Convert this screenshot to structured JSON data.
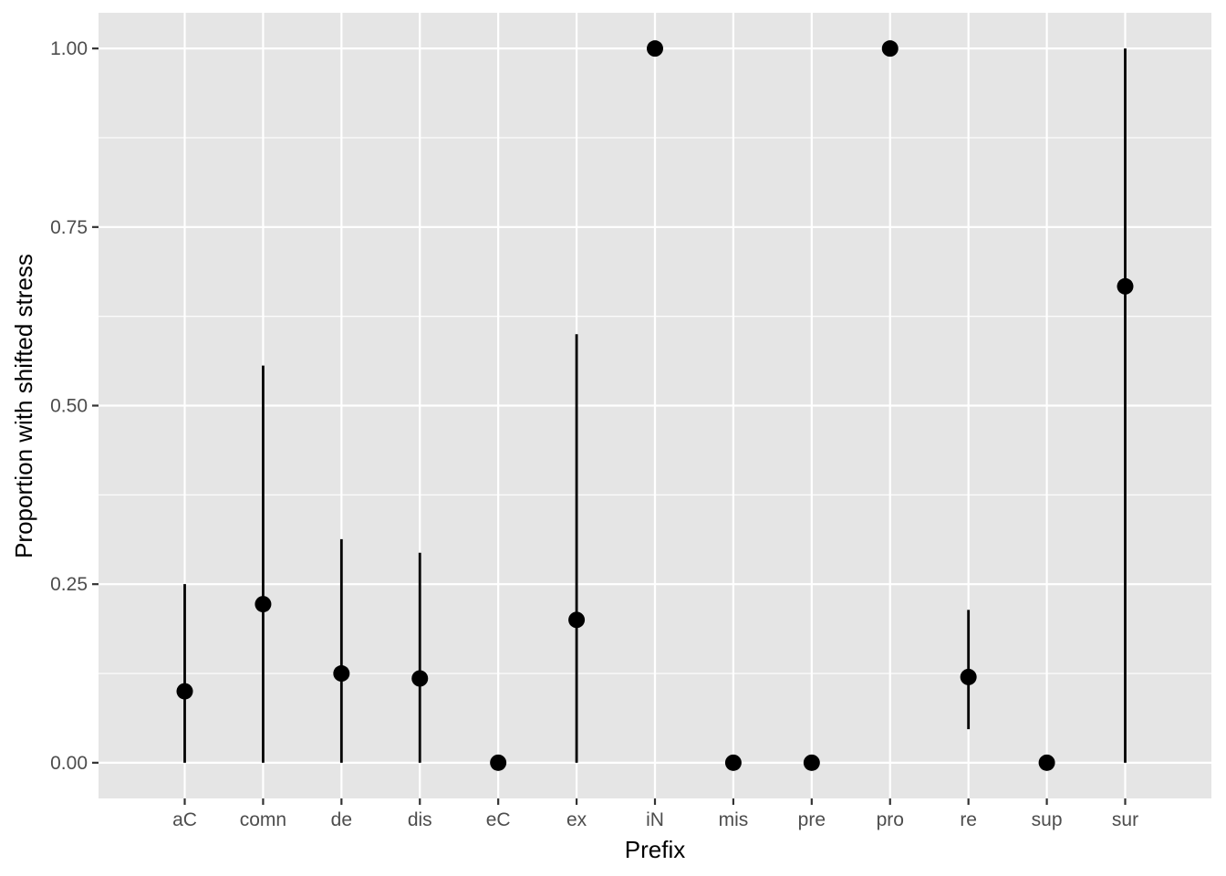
{
  "chart_data": {
    "type": "scatter",
    "xlabel": "Prefix",
    "ylabel": "Proportion with shifted stress",
    "categories": [
      "aC",
      "comn",
      "de",
      "dis",
      "eC",
      "ex",
      "iN",
      "mis",
      "pre",
      "pro",
      "re",
      "sup",
      "sur"
    ],
    "values": [
      0.1,
      0.222,
      0.125,
      0.118,
      0.0,
      0.2,
      1.0,
      0.0,
      0.0,
      1.0,
      0.12,
      0.0,
      0.667
    ],
    "error_low": [
      0.0,
      0.0,
      0.0,
      0.0,
      0.0,
      0.0,
      1.0,
      0.0,
      0.0,
      1.0,
      0.047,
      0.0,
      0.0
    ],
    "error_high": [
      0.25,
      0.556,
      0.313,
      0.294,
      0.0,
      0.6,
      1.0,
      0.0,
      0.0,
      1.0,
      0.214,
      0.0,
      1.0
    ],
    "y_ticks": [
      0.0,
      0.25,
      0.5,
      0.75,
      1.0
    ],
    "y_tick_labels": [
      "0.00",
      "0.25",
      "0.50",
      "0.75",
      "1.00"
    ],
    "ylim": [
      -0.05,
      1.05
    ],
    "grid": true,
    "legend": "none",
    "colors": {
      "panel": "#e5e5e5",
      "grid": "#ffffff",
      "point": "#000000",
      "tick_text": "#4d4d4d"
    }
  }
}
